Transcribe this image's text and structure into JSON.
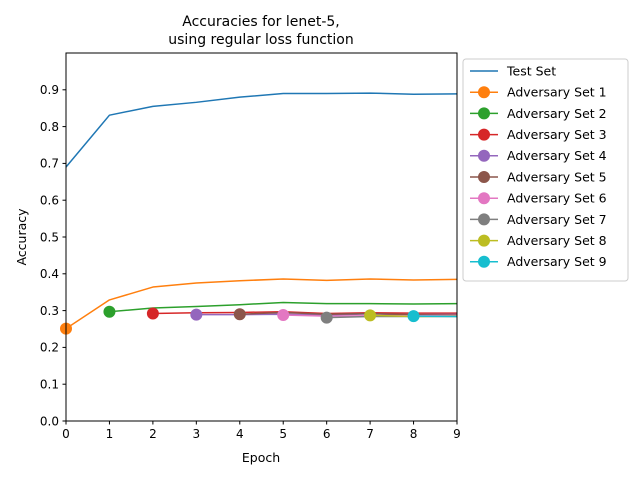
{
  "chart_data": {
    "type": "line",
    "title_lines": [
      "Accuracies for lenet-5,",
      "using regular loss function"
    ],
    "xlabel": "Epoch",
    "ylabel": "Accuracy",
    "xlim": [
      0,
      9
    ],
    "ylim": [
      0,
      1.0
    ],
    "xticks": [
      "0",
      "1",
      "2",
      "3",
      "4",
      "5",
      "6",
      "7",
      "8",
      "9"
    ],
    "yticks": [
      "0.0",
      "0.1",
      "0.2",
      "0.3",
      "0.4",
      "0.5",
      "0.6",
      "0.7",
      "0.8",
      "0.9"
    ],
    "ytick_values": [
      0.0,
      0.1,
      0.2,
      0.3,
      0.4,
      0.5,
      0.6,
      0.7,
      0.8,
      0.9
    ],
    "grid": false,
    "legend_position": "outside-right-top",
    "series": [
      {
        "name": "Test Set",
        "color": "#1f77b4",
        "marker": "none",
        "x": [
          0,
          1,
          2,
          3,
          4,
          5,
          6,
          7,
          8,
          9
        ],
        "y": [
          0.69,
          0.831,
          0.855,
          0.866,
          0.88,
          0.89,
          0.89,
          0.891,
          0.888,
          0.889
        ]
      },
      {
        "name": "Adversary Set 1",
        "color": "#ff7f0e",
        "marker": "circle",
        "x": [
          0,
          1,
          2,
          3,
          4,
          5,
          6,
          7,
          8,
          9
        ],
        "y": [
          0.251,
          0.329,
          0.364,
          0.375,
          0.381,
          0.386,
          0.382,
          0.386,
          0.383,
          0.385
        ]
      },
      {
        "name": "Adversary Set 2",
        "color": "#2ca02c",
        "marker": "circle",
        "x": [
          1,
          2,
          3,
          4,
          5,
          6,
          7,
          8,
          9
        ],
        "y": [
          0.297,
          0.307,
          0.311,
          0.316,
          0.322,
          0.319,
          0.319,
          0.318,
          0.319
        ]
      },
      {
        "name": "Adversary Set 3",
        "color": "#d62728",
        "marker": "circle",
        "x": [
          2,
          3,
          4,
          5,
          6,
          7,
          8,
          9
        ],
        "y": [
          0.292,
          0.294,
          0.295,
          0.297,
          0.292,
          0.294,
          0.293,
          0.293
        ]
      },
      {
        "name": "Adversary Set 4",
        "color": "#9467bd",
        "marker": "circle",
        "x": [
          3,
          4,
          5,
          6,
          7,
          8,
          9
        ],
        "y": [
          0.289,
          0.289,
          0.29,
          0.288,
          0.291,
          0.289,
          0.29
        ]
      },
      {
        "name": "Adversary Set 5",
        "color": "#8c564b",
        "marker": "circle",
        "x": [
          4,
          5,
          6,
          7,
          8,
          9
        ],
        "y": [
          0.29,
          0.295,
          0.29,
          0.292,
          0.289,
          0.289
        ]
      },
      {
        "name": "Adversary Set 6",
        "color": "#e377c2",
        "marker": "circle",
        "x": [
          5,
          6,
          7,
          8,
          9
        ],
        "y": [
          0.288,
          0.285,
          0.286,
          0.286,
          0.287
        ]
      },
      {
        "name": "Adversary Set 7",
        "color": "#7f7f7f",
        "marker": "circle",
        "x": [
          6,
          7,
          8,
          9
        ],
        "y": [
          0.281,
          0.284,
          0.284,
          0.284
        ]
      },
      {
        "name": "Adversary Set 8",
        "color": "#bcbd22",
        "marker": "circle",
        "x": [
          7,
          8,
          9
        ],
        "y": [
          0.287,
          0.284,
          0.285
        ]
      },
      {
        "name": "Adversary Set 9",
        "color": "#17becf",
        "marker": "circle",
        "x": [
          8,
          9
        ],
        "y": [
          0.285,
          0.284
        ]
      }
    ]
  }
}
